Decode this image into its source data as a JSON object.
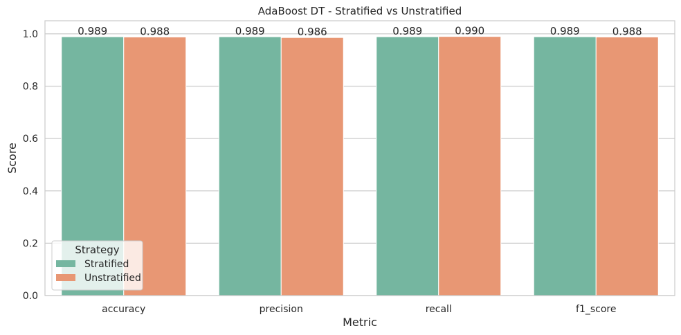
{
  "chart_data": {
    "type": "bar",
    "title": "AdaBoost DT - Stratified vs Unstratified",
    "xlabel": "Metric",
    "ylabel": "Score",
    "categories": [
      "accuracy",
      "precision",
      "recall",
      "f1_score"
    ],
    "series": [
      {
        "name": "Stratified",
        "values": [
          0.989,
          0.989,
          0.989,
          0.989
        ],
        "labels": [
          "0.989",
          "0.989",
          "0.989",
          "0.989"
        ],
        "color": "#75b6a0"
      },
      {
        "name": "Unstratified",
        "values": [
          0.988,
          0.986,
          0.99,
          0.988
        ],
        "labels": [
          "0.988",
          "0.986",
          "0.990",
          "0.988"
        ],
        "color": "#e89774"
      }
    ],
    "ylim": [
      0,
      1.05
    ],
    "yticks": [
      0.0,
      0.2,
      0.4,
      0.6,
      0.8,
      1.0
    ],
    "ytick_labels": [
      "0.0",
      "0.2",
      "0.4",
      "0.6",
      "0.8",
      "1.0"
    ],
    "grid": true,
    "legend": {
      "title": "Strategy",
      "placement": "lower-left"
    }
  }
}
